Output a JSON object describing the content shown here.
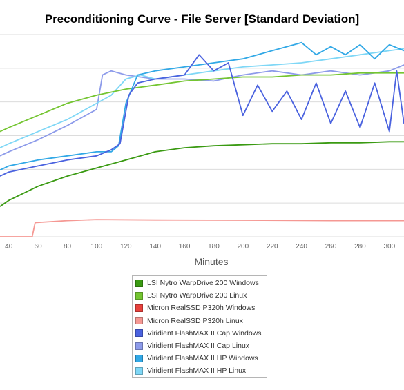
{
  "chart_data": {
    "type": "line",
    "title": "Preconditioning Curve - File Server [Standard Deviation]",
    "xlabel": "Minutes",
    "ylabel": "",
    "x_ticks": [
      "40",
      "60",
      "80",
      "100",
      "120",
      "140",
      "160",
      "180",
      "200",
      "220",
      "240",
      "260",
      "280",
      "300"
    ],
    "xlim": [
      34,
      310
    ],
    "ylim": [
      0,
      1
    ],
    "grid": true,
    "legend_position": "bottom",
    "series": [
      {
        "name": "LSI Nytro WarpDrive 200 Windows",
        "color": "#3a9a12",
        "x": [
          34,
          40,
          60,
          80,
          100,
          120,
          140,
          160,
          180,
          200,
          220,
          240,
          260,
          280,
          300,
          310
        ],
        "y": [
          0.15,
          0.18,
          0.25,
          0.3,
          0.34,
          0.38,
          0.42,
          0.44,
          0.45,
          0.455,
          0.46,
          0.46,
          0.465,
          0.465,
          0.47,
          0.47
        ]
      },
      {
        "name": "LSI Nytro WarpDrive 200 Linux",
        "color": "#74c531",
        "x": [
          34,
          40,
          60,
          80,
          100,
          120,
          140,
          160,
          180,
          200,
          220,
          240,
          260,
          280,
          300,
          310
        ],
        "y": [
          0.52,
          0.54,
          0.6,
          0.66,
          0.7,
          0.73,
          0.75,
          0.77,
          0.78,
          0.79,
          0.79,
          0.8,
          0.8,
          0.81,
          0.81,
          0.81
        ]
      },
      {
        "name": "Micron RealSSD P320h Windows",
        "color": "#e8413c",
        "x": [],
        "y": []
      },
      {
        "name": "Micron RealSSD P320h Linux",
        "color": "#f59893",
        "x": [
          34,
          40,
          50,
          56,
          58,
          80,
          100,
          140,
          200,
          260,
          310
        ],
        "y": [
          0.0,
          0.0,
          0.0,
          0.0,
          0.07,
          0.08,
          0.085,
          0.083,
          0.082,
          0.08,
          0.08
        ]
      },
      {
        "name": "Viridient FlashMAX II Cap Windows",
        "color": "#4a62df",
        "x": [
          34,
          40,
          60,
          80,
          100,
          110,
          116,
          122,
          128,
          140,
          160,
          170,
          180,
          190,
          200,
          210,
          220,
          230,
          240,
          250,
          260,
          270,
          280,
          290,
          300,
          305,
          310
        ],
        "y": [
          0.3,
          0.32,
          0.35,
          0.38,
          0.4,
          0.43,
          0.46,
          0.7,
          0.76,
          0.78,
          0.8,
          0.9,
          0.82,
          0.86,
          0.6,
          0.75,
          0.62,
          0.72,
          0.58,
          0.76,
          0.56,
          0.72,
          0.54,
          0.76,
          0.52,
          0.82,
          0.56
        ]
      },
      {
        "name": "Viridient FlashMAX II Cap Linux",
        "color": "#8d9bea",
        "x": [
          34,
          40,
          60,
          80,
          100,
          104,
          110,
          120,
          140,
          160,
          180,
          200,
          220,
          240,
          260,
          280,
          300,
          310
        ],
        "y": [
          0.4,
          0.42,
          0.48,
          0.55,
          0.63,
          0.8,
          0.82,
          0.8,
          0.78,
          0.78,
          0.77,
          0.8,
          0.82,
          0.8,
          0.82,
          0.8,
          0.82,
          0.85
        ]
      },
      {
        "name": "Viridient FlashMAX II HP Windows",
        "color": "#31a8e6",
        "x": [
          34,
          40,
          60,
          80,
          100,
          110,
          115,
          120,
          128,
          140,
          160,
          180,
          200,
          220,
          240,
          250,
          260,
          270,
          280,
          290,
          300,
          310
        ],
        "y": [
          0.33,
          0.35,
          0.38,
          0.4,
          0.42,
          0.42,
          0.45,
          0.66,
          0.8,
          0.82,
          0.84,
          0.86,
          0.88,
          0.92,
          0.96,
          0.9,
          0.94,
          0.9,
          0.95,
          0.88,
          0.95,
          0.92
        ]
      },
      {
        "name": "Viridient FlashMAX II HP Linux",
        "color": "#7fd7f6",
        "x": [
          34,
          40,
          60,
          80,
          100,
          110,
          120,
          130,
          140,
          160,
          180,
          200,
          220,
          240,
          260,
          280,
          300,
          310
        ],
        "y": [
          0.44,
          0.46,
          0.52,
          0.58,
          0.66,
          0.7,
          0.78,
          0.8,
          0.78,
          0.8,
          0.82,
          0.84,
          0.85,
          0.86,
          0.88,
          0.9,
          0.92,
          0.93
        ]
      }
    ]
  }
}
